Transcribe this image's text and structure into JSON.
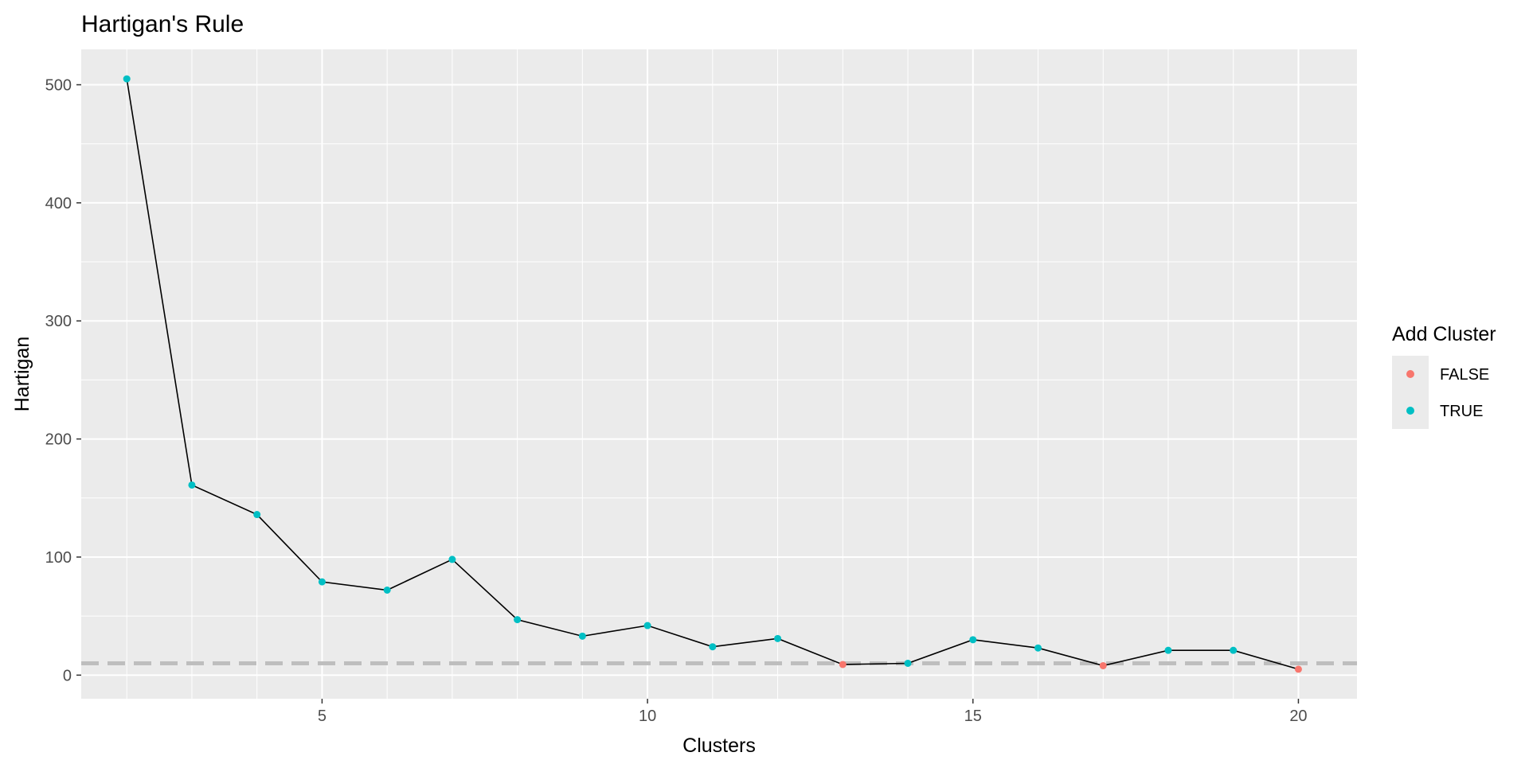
{
  "chart_data": {
    "type": "line",
    "title": "Hartigan's Rule",
    "xlabel": "Clusters",
    "ylabel": "Hartigan",
    "xlim": [
      1.3,
      20.9
    ],
    "ylim": [
      -20,
      530
    ],
    "x_ticks": [
      5,
      10,
      15,
      20
    ],
    "x_tick_labels": [
      "5",
      "10",
      "15",
      "20"
    ],
    "y_ticks": [
      0,
      100,
      200,
      300,
      400,
      500
    ],
    "y_tick_labels": [
      "0",
      "100",
      "200",
      "300",
      "400",
      "500"
    ],
    "grid": true,
    "reference_line": {
      "y": 10,
      "style": "dashed",
      "color": "#bebebe"
    },
    "legend": {
      "title": "Add Cluster",
      "position": "right",
      "entries": [
        {
          "label": "FALSE",
          "color": "#f8766d"
        },
        {
          "label": "TRUE",
          "color": "#00bfc4"
        }
      ]
    },
    "line_color": "#000000",
    "points": [
      {
        "x": 2,
        "y": 505,
        "group": "TRUE"
      },
      {
        "x": 3,
        "y": 161,
        "group": "TRUE"
      },
      {
        "x": 4,
        "y": 136,
        "group": "TRUE"
      },
      {
        "x": 5,
        "y": 79,
        "group": "TRUE"
      },
      {
        "x": 6,
        "y": 72,
        "group": "TRUE"
      },
      {
        "x": 7,
        "y": 98,
        "group": "TRUE"
      },
      {
        "x": 8,
        "y": 47,
        "group": "TRUE"
      },
      {
        "x": 9,
        "y": 33,
        "group": "TRUE"
      },
      {
        "x": 10,
        "y": 42,
        "group": "TRUE"
      },
      {
        "x": 11,
        "y": 24,
        "group": "TRUE"
      },
      {
        "x": 12,
        "y": 31,
        "group": "TRUE"
      },
      {
        "x": 13,
        "y": 9,
        "group": "FALSE"
      },
      {
        "x": 14,
        "y": 10,
        "group": "TRUE"
      },
      {
        "x": 15,
        "y": 30,
        "group": "TRUE"
      },
      {
        "x": 16,
        "y": 23,
        "group": "TRUE"
      },
      {
        "x": 17,
        "y": 8,
        "group": "FALSE"
      },
      {
        "x": 18,
        "y": 21,
        "group": "TRUE"
      },
      {
        "x": 19,
        "y": 21,
        "group": "TRUE"
      },
      {
        "x": 20,
        "y": 5,
        "group": "FALSE"
      }
    ]
  }
}
